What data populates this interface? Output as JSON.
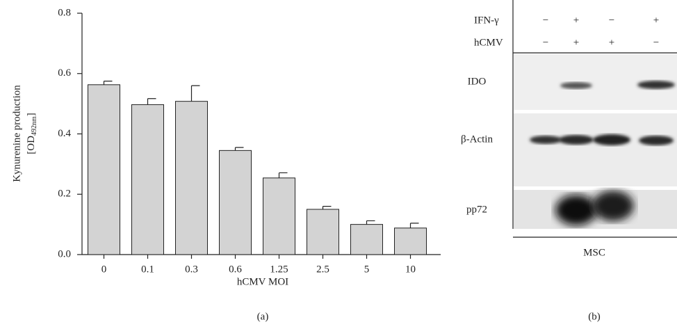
{
  "chart_data": {
    "type": "bar",
    "ylabel": "Kynurenine production",
    "ylabel_unit_parts": [
      "[OD",
      "492nm",
      "]"
    ],
    "xlabel": "hCMV MOI",
    "categories": [
      "0",
      "0.1",
      "0.3",
      "0.6",
      "1.25",
      "2.5",
      "5",
      "10"
    ],
    "values": [
      0.563,
      0.497,
      0.508,
      0.345,
      0.254,
      0.15,
      0.1,
      0.088
    ],
    "errors": [
      0.012,
      0.02,
      0.052,
      0.01,
      0.017,
      0.01,
      0.012,
      0.016
    ],
    "color": "#d3d3d3",
    "ylim": [
      0,
      0.8
    ],
    "yticks": [
      {
        "value": 0,
        "label": "0.0"
      },
      0.2,
      0.4,
      0.6,
      0.8
    ],
    "grid": false
  },
  "blot": {
    "conditions": [
      {
        "name": "IFN-γ",
        "lanes": [
          "−",
          "+",
          "−",
          "+"
        ]
      },
      {
        "name": "hCMV",
        "lanes": [
          "−",
          "+",
          "+",
          "−"
        ]
      }
    ],
    "rows": [
      "IDO",
      "β-Actin",
      "pp72"
    ],
    "cell": "MSC"
  },
  "panel_labels": [
    "(a)",
    "(b)"
  ]
}
